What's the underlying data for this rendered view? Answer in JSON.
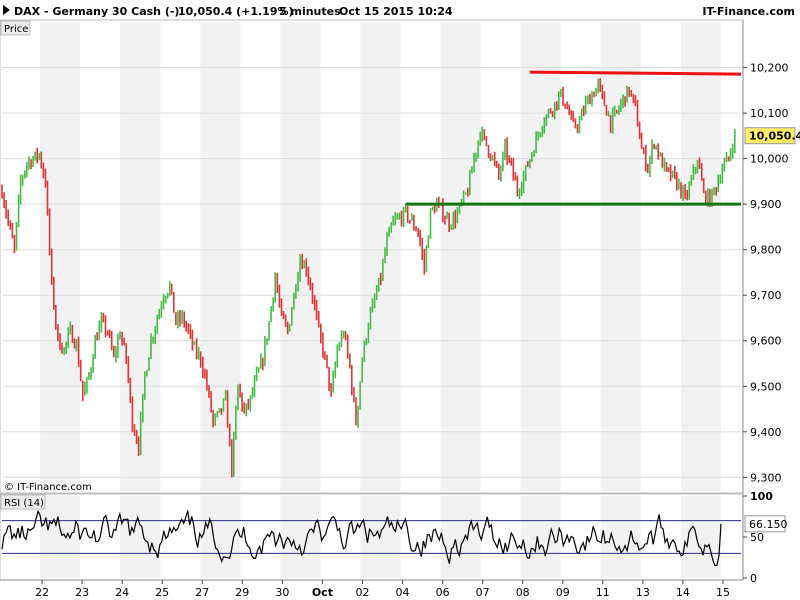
{
  "header": {
    "title": "DAX - Germany 30 Cash (-)",
    "price": "10,050.4 (+1.19%)",
    "interval": "5 minutes",
    "datetime": "Oct 15 2015 10:24",
    "brand": "IT-Finance.com"
  },
  "panels": {
    "price_label": "Price",
    "copyright": "© IT-Finance.com",
    "rsi_label": "RSI (14)"
  },
  "colors": {
    "up": "#44bb44",
    "down": "#dd3333",
    "resistance": "#ee1111",
    "support": "#117711",
    "rsi_line": "#000000",
    "rsi_band": "#2a2a8a"
  },
  "chart_data": [
    {
      "type": "candlestick",
      "title": "DAX - Germany 30 Cash (-)",
      "ylim": [
        9270,
        10300
      ],
      "y_ticks": [
        9300,
        9400,
        9500,
        9600,
        9700,
        9800,
        9900,
        10000,
        10100,
        10200
      ],
      "y_tick_labels": [
        "9,300",
        "9,400",
        "9,500",
        "9,600",
        "9,700",
        "9,800",
        "9,900",
        "10,000",
        "10,100",
        "10,200"
      ],
      "x_labels": [
        "22",
        "23",
        "24",
        "25",
        "27",
        "29",
        "30",
        "Oct",
        "02",
        "04",
        "06",
        "07",
        "08",
        "09",
        "11",
        "13",
        "14",
        "15"
      ],
      "last_value": 10050.4,
      "last_value_label": "10,050.4",
      "price_path": [
        [
          0,
          9930
        ],
        [
          1,
          9860
        ],
        [
          2,
          9800
        ],
        [
          3,
          9950
        ],
        [
          4,
          9990
        ],
        [
          5,
          10000
        ],
        [
          6,
          10010
        ],
        [
          7,
          9950
        ],
        [
          8,
          9720
        ],
        [
          9,
          9600
        ],
        [
          10,
          9580
        ],
        [
          11,
          9620
        ],
        [
          12,
          9590
        ],
        [
          13,
          9480
        ],
        [
          14,
          9520
        ],
        [
          15,
          9600
        ],
        [
          16,
          9640
        ],
        [
          17,
          9620
        ],
        [
          18,
          9560
        ],
        [
          19,
          9620
        ],
        [
          20,
          9560
        ],
        [
          21,
          9420
        ],
        [
          22,
          9370
        ],
        [
          23,
          9520
        ],
        [
          24,
          9600
        ],
        [
          25,
          9650
        ],
        [
          26,
          9700
        ],
        [
          27,
          9720
        ],
        [
          28,
          9640
        ],
        [
          29,
          9650
        ],
        [
          30,
          9620
        ],
        [
          31,
          9580
        ],
        [
          32,
          9560
        ],
        [
          33,
          9500
        ],
        [
          34,
          9420
        ],
        [
          35,
          9440
        ],
        [
          36,
          9470
        ],
        [
          37,
          9320
        ],
        [
          38,
          9500
        ],
        [
          39,
          9440
        ],
        [
          40,
          9470
        ],
        [
          41,
          9520
        ],
        [
          42,
          9560
        ],
        [
          43,
          9640
        ],
        [
          44,
          9740
        ],
        [
          45,
          9650
        ],
        [
          46,
          9620
        ],
        [
          47,
          9700
        ],
        [
          48,
          9780
        ],
        [
          49,
          9760
        ],
        [
          50,
          9700
        ],
        [
          51,
          9620
        ],
        [
          52,
          9560
        ],
        [
          53,
          9480
        ],
        [
          54,
          9580
        ],
        [
          55,
          9620
        ],
        [
          56,
          9540
        ],
        [
          57,
          9420
        ],
        [
          58,
          9560
        ],
        [
          59,
          9640
        ],
        [
          60,
          9690
        ],
        [
          61,
          9740
        ],
        [
          62,
          9820
        ],
        [
          63,
          9860
        ],
        [
          64,
          9870
        ],
        [
          65,
          9880
        ],
        [
          66,
          9860
        ],
        [
          67,
          9840
        ],
        [
          68,
          9760
        ],
        [
          69,
          9880
        ],
        [
          70,
          9900
        ],
        [
          71,
          9880
        ],
        [
          72,
          9860
        ],
        [
          73,
          9870
        ],
        [
          74,
          9900
        ],
        [
          75,
          9930
        ],
        [
          76,
          10000
        ],
        [
          77,
          10060
        ],
        [
          78,
          10030
        ],
        [
          79,
          10000
        ],
        [
          80,
          9960
        ],
        [
          81,
          10020
        ],
        [
          82,
          9980
        ],
        [
          83,
          9930
        ],
        [
          84,
          9960
        ],
        [
          85,
          10000
        ],
        [
          86,
          10040
        ],
        [
          87,
          10080
        ],
        [
          88,
          10100
        ],
        [
          89,
          10120
        ],
        [
          90,
          10140
        ],
        [
          91,
          10110
        ],
        [
          92,
          10070
        ],
        [
          93,
          10080
        ],
        [
          94,
          10120
        ],
        [
          95,
          10140
        ],
        [
          96,
          10160
        ],
        [
          97,
          10120
        ],
        [
          98,
          10080
        ],
        [
          99,
          10100
        ],
        [
          100,
          10130
        ],
        [
          101,
          10150
        ],
        [
          102,
          10110
        ],
        [
          103,
          10020
        ],
        [
          104,
          9980
        ],
        [
          105,
          10040
        ],
        [
          106,
          10000
        ],
        [
          107,
          9970
        ],
        [
          108,
          9960
        ],
        [
          109,
          9940
        ],
        [
          110,
          9910
        ],
        [
          111,
          9950
        ],
        [
          112,
          10000
        ],
        [
          113,
          9920
        ],
        [
          114,
          9910
        ],
        [
          115,
          9940
        ],
        [
          116,
          9980
        ],
        [
          117,
          10000
        ],
        [
          118,
          10050
        ]
      ],
      "annotations": [
        {
          "type": "resistance",
          "y": 10190,
          "x_start": 85,
          "x_end": 119
        },
        {
          "type": "support",
          "y": 9900,
          "x_start": 65,
          "x_end": 119
        }
      ]
    },
    {
      "type": "line",
      "title": "RSI (14)",
      "ylim": [
        0,
        100
      ],
      "y_ticks": [
        0,
        50,
        100
      ],
      "y_tick_labels": [
        "0",
        "50",
        "100"
      ],
      "bands": [
        30,
        70
      ],
      "last_value": 66.15,
      "last_value_label": "66.150"
    }
  ]
}
